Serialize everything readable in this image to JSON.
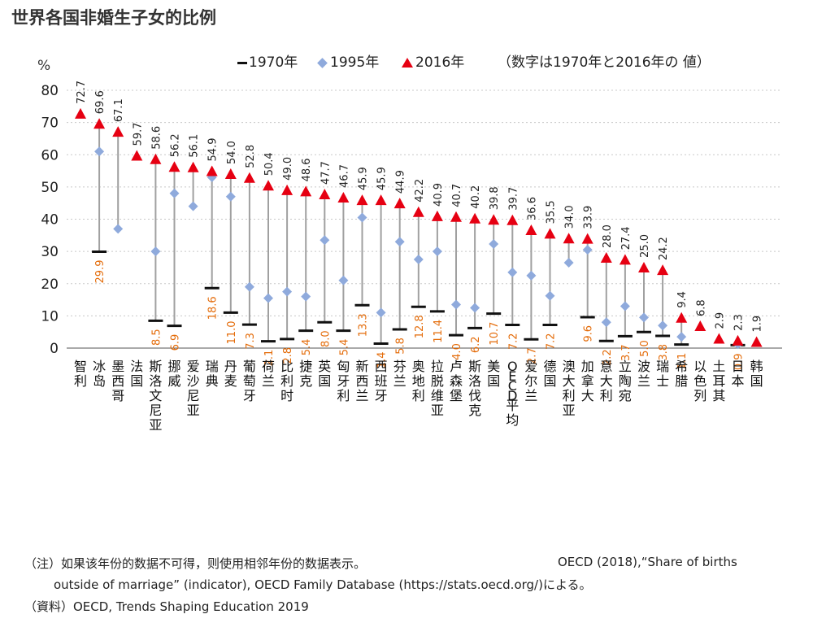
{
  "chart_data": {
    "type": "scatter",
    "title": "世界各国非婚生子女的比例",
    "yunit": "%",
    "ylim": [
      0,
      80
    ],
    "yticks": [
      0,
      10,
      20,
      30,
      40,
      50,
      60,
      70,
      80
    ],
    "grid": true,
    "legend_placement": "top",
    "legend": {
      "items": [
        {
          "marker": "dash",
          "label": "1970年",
          "color": "#111111"
        },
        {
          "marker": "diamond",
          "label": "1995年",
          "color": "#8faadc"
        },
        {
          "marker": "triangle",
          "label": "2016年",
          "color": "#e60012"
        }
      ],
      "note": "（数字は1970年と2016年の 値）"
    },
    "categories": [
      "智利",
      "冰岛",
      "墨西哥",
      "法国",
      "斯洛文尼亚",
      "挪威",
      "爱沙尼亚",
      "瑞典",
      "丹麦",
      "葡萄牙",
      "荷兰",
      "比利时",
      "捷克",
      "英国",
      "匈牙利",
      "新西兰",
      "西班牙",
      "芬兰",
      "奥地利",
      "拉脱维亚",
      "卢森堡",
      "斯洛伐克",
      "美国",
      "OECD平均",
      "爱尔兰",
      "德国",
      "澳大利亚",
      "加拿大",
      "意大利",
      "立陶宛",
      "波兰",
      "瑞士",
      "希腊",
      "以色列",
      "土耳其",
      "日本",
      "韩国"
    ],
    "series": [
      {
        "name": "2016年",
        "values": [
          72.7,
          69.6,
          67.1,
          59.7,
          58.6,
          56.2,
          56.1,
          54.9,
          54.0,
          52.8,
          50.4,
          49.0,
          48.6,
          47.7,
          46.7,
          45.9,
          45.9,
          44.9,
          42.2,
          40.9,
          40.7,
          40.2,
          39.8,
          39.7,
          36.6,
          35.5,
          34.0,
          33.9,
          28.0,
          27.4,
          25.0,
          24.2,
          9.4,
          6.8,
          2.9,
          2.3,
          1.9
        ]
      },
      {
        "name": "1995年",
        "values": [
          null,
          61,
          37,
          null,
          30,
          48,
          44,
          53,
          47,
          19,
          15.5,
          17.5,
          16,
          33.5,
          21,
          40.5,
          11,
          33,
          27.5,
          30,
          13.5,
          12.5,
          32.3,
          23.5,
          22.5,
          16.2,
          26.5,
          30.5,
          8,
          13,
          9.5,
          7,
          3.5,
          null,
          null,
          1.2,
          null
        ]
      },
      {
        "name": "1970年",
        "values": [
          null,
          29.9,
          null,
          null,
          8.5,
          6.9,
          null,
          18.6,
          11.0,
          7.3,
          2.1,
          2.8,
          5.4,
          8.0,
          5.4,
          13.3,
          1.4,
          5.8,
          12.8,
          11.4,
          4.0,
          6.2,
          10.7,
          7.2,
          2.7,
          7.2,
          null,
          9.6,
          2.2,
          3.7,
          5.0,
          3.8,
          1.1,
          null,
          null,
          0.9,
          null
        ]
      }
    ],
    "labels_2016": [
      "72.7",
      "69.6",
      "67.1",
      "59.7",
      "58.6",
      "56.2",
      "56.1",
      "54.9",
      "54.0",
      "52.8",
      "50.4",
      "49.0",
      "48.6",
      "47.7",
      "46.7",
      "45.9",
      "45.9",
      "44.9",
      "42.2",
      "40.9",
      "40.7",
      "40.2",
      "39.8",
      "39.7",
      "36.6",
      "35.5",
      "34.0",
      "33.9",
      "28.0",
      "27.4",
      "25.0",
      "24.2",
      "9.4",
      "6.8",
      "2.9",
      "2.3",
      "1.9"
    ],
    "labels_1970": [
      "",
      "29.9",
      "",
      "",
      "8.5",
      "6.9",
      "",
      "18.6",
      "11.0",
      "7.3",
      "2.1",
      "2.8",
      "5.4",
      "8.0",
      "5.4",
      "13.3",
      "1.4",
      "5.8",
      "12.8",
      "11.4",
      "4.0",
      "6.2",
      "10.7",
      "7.2",
      "2.7",
      "7.2",
      "",
      "9.6",
      "2.2",
      "3.7",
      "5.0",
      "3.8",
      "1.1",
      "",
      "",
      "0.9",
      ""
    ]
  },
  "footnotes": {
    "note_line1": "（注）如果该年份的数据不可得，则使用相邻年份的数据表示。",
    "source_line1": "OECD (2018),“Share of births",
    "source_line2": "outside of marriage” (indicator), OECD Family Database (https://stats.oecd.org/)による。",
    "source_line3": "（資料）OECD, Trends Shaping Education 2019"
  },
  "colors": {
    "y1970": "#111111",
    "y1995": "#8faadc",
    "y2016": "#e60012",
    "label1970": "#e46c0a",
    "connector": "#a0a0a0",
    "grid": "#c8c8c8"
  }
}
